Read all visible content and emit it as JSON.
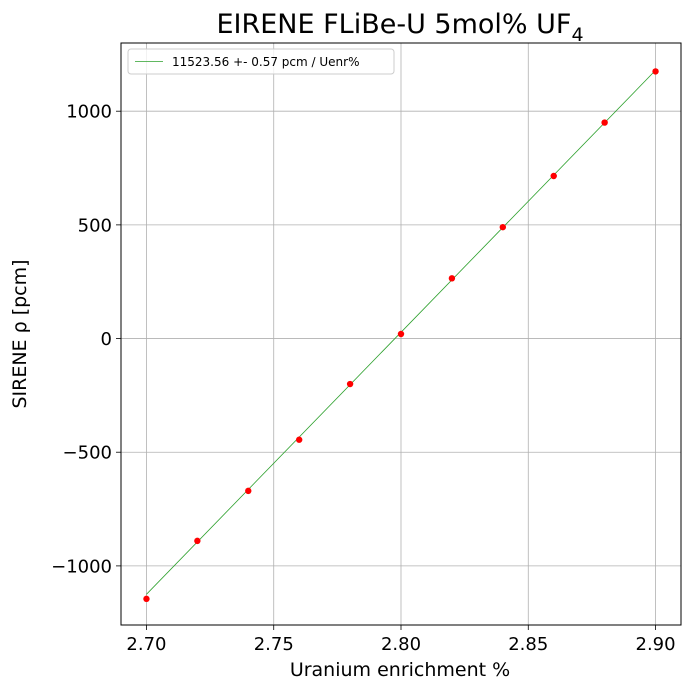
{
  "chart_data": {
    "type": "scatter",
    "title": "EIRENE FLiBe-U 5mol% UF",
    "title_subscript": "4",
    "xlabel": "Uranium enrichment %",
    "ylabel": "SIRENE ρ [pcm]",
    "xlim": [
      2.69,
      2.91
    ],
    "ylim": [
      -1260,
      1300
    ],
    "xticks": [
      2.7,
      2.75,
      2.8,
      2.85,
      2.9
    ],
    "xtick_labels": [
      "2.70",
      "2.75",
      "2.80",
      "2.85",
      "2.90"
    ],
    "yticks": [
      -1000,
      -500,
      0,
      500,
      1000
    ],
    "ytick_labels": [
      "−1000",
      "−500",
      "0",
      "500",
      "1000"
    ],
    "grid": true,
    "legend_position": "top-left",
    "points": {
      "color": "#ff0000",
      "x": [
        2.7,
        2.72,
        2.74,
        2.76,
        2.78,
        2.8,
        2.82,
        2.84,
        2.86,
        2.88,
        2.9
      ],
      "y": [
        -1145,
        -890,
        -670,
        -445,
        -200,
        20,
        265,
        490,
        715,
        950,
        1175
      ]
    },
    "fit_line": {
      "name": "11523.56 +- 0.57 pcm / Uenr%",
      "color": "#2ca02c",
      "x": [
        2.7,
        2.9
      ],
      "y": [
        -1125,
        1180
      ]
    }
  }
}
